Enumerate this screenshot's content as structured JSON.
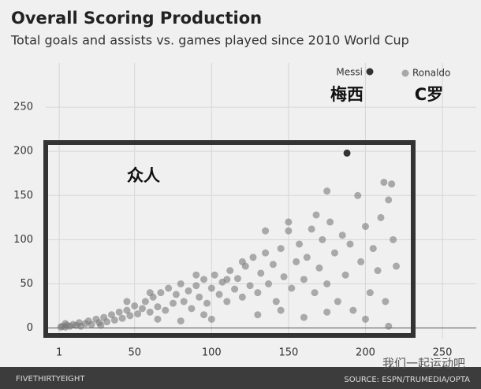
{
  "chart_data": {
    "type": "scatter",
    "title": "Overall Scoring Production",
    "subtitle": "Total goals and assists vs. games played since 2010 World Cup",
    "xlim": [
      -18,
      272
    ],
    "ylim": [
      -12,
      300
    ],
    "xticks": [
      1,
      50,
      100,
      150,
      200,
      250
    ],
    "yticks": [
      0,
      50,
      100,
      150,
      200,
      250
    ],
    "grid": true,
    "legend": "top-right",
    "annotations": [
      "梅西",
      "C罗",
      "众人"
    ],
    "series": [
      {
        "color": "#7a7a7a",
        "x": [
          2,
          3,
          5,
          6,
          8,
          10,
          12,
          14,
          15,
          18,
          20,
          22,
          25,
          27,
          30,
          32,
          35,
          37,
          40,
          42,
          45,
          47,
          50,
          52,
          55,
          57,
          60,
          62,
          65,
          67,
          70,
          72,
          75,
          77,
          80,
          82,
          85,
          87,
          90,
          92,
          95,
          97,
          100,
          102,
          105,
          107,
          110,
          112,
          115,
          117,
          120,
          122,
          125,
          127,
          130,
          132,
          135,
          137,
          140,
          142,
          145,
          147,
          150,
          152,
          155,
          157,
          160,
          162,
          165,
          167,
          170,
          172,
          175,
          177,
          180,
          182,
          185,
          187,
          190,
          192,
          195,
          197,
          200,
          203,
          205,
          208,
          210,
          213,
          215,
          218,
          220,
          212,
          175,
          168,
          150,
          135,
          120,
          90,
          60,
          45,
          110,
          145,
          160,
          175,
          200,
          215,
          100,
          80,
          130,
          5,
          28,
          65,
          95
        ],
        "values": [
          1,
          2,
          1,
          3,
          2,
          4,
          3,
          6,
          2,
          5,
          8,
          4,
          10,
          6,
          12,
          7,
          15,
          9,
          18,
          11,
          20,
          14,
          25,
          16,
          22,
          30,
          18,
          35,
          24,
          40,
          20,
          45,
          28,
          38,
          50,
          30,
          42,
          22,
          48,
          35,
          55,
          28,
          45,
          60,
          38,
          52,
          30,
          65,
          44,
          56,
          35,
          70,
          48,
          80,
          40,
          62,
          85,
          50,
          72,
          30,
          90,
          58,
          110,
          45,
          75,
          95,
          55,
          80,
          112,
          40,
          68,
          100,
          50,
          120,
          85,
          30,
          105,
          60,
          95,
          20,
          150,
          75,
          115,
          40,
          90,
          65,
          125,
          30,
          145,
          100,
          70,
          165,
          155,
          128,
          120,
          110,
          75,
          60,
          40,
          30,
          55,
          20,
          12,
          18,
          10,
          2,
          10,
          8,
          15,
          5,
          3,
          10,
          15
        ]
      },
      {
        "name": "Messi",
        "color": "#333333",
        "x": [
          188
        ],
        "values": [
          198
        ]
      },
      {
        "name": "Ronaldo",
        "color": "#a8a8a8",
        "x": [
          217
        ],
        "values": [
          163
        ]
      }
    ]
  },
  "footer": {
    "brand": "FIVETHIRTYEIGHT",
    "source": "SOURCE: ESPN/TRUMEDIA/OPTA",
    "watermark": "我们一起运动吧"
  }
}
